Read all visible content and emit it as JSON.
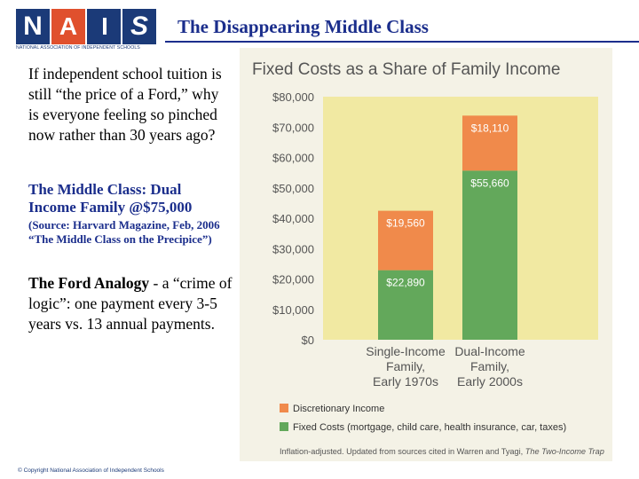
{
  "logo": {
    "letters": [
      "N",
      "A",
      "I",
      "S"
    ],
    "caption": "NATIONAL ASSOCIATION OF INDEPENDENT SCHOOLS",
    "colors": [
      "#1b3a78",
      "#e0502d",
      "#1b3a78",
      "#1b3a78"
    ]
  },
  "slide": {
    "title": "The Disappearing Middle Class",
    "intro": "If independent school tuition is still “the price of a Ford,” why is everyone feeling so pinched now rather than 30 years ago?",
    "middle_class_heading": "The Middle Class: Dual Income Family @$75,000",
    "source_note": "(Source: Harvard Magazine, Feb, 2006 “The Middle Class on the Precipice”)",
    "ford_bold": "The Ford Analogy",
    "ford_rest": " - a “crime of logic”: one payment every 3-5 years vs. 13 annual payments.",
    "copyright": "© Copyright National Association of Independent Schools"
  },
  "colors": {
    "title_blue": "#1b2e8c",
    "panel_bg": "#f4f2e6",
    "plot_bg": "#f1e9a2",
    "fixed_green": "#63a85b",
    "discretionary_orange": "#f08a4b",
    "chart_text": "#555555"
  },
  "chart_data": {
    "type": "bar",
    "stacked": true,
    "title": "Fixed Costs as a Share of Family Income",
    "categories": [
      [
        "Single-Income",
        "Family,",
        "Early 1970s"
      ],
      [
        "Dual-Income",
        "Family,",
        "Early 2000s"
      ]
    ],
    "series": [
      {
        "name": "Fixed Costs (mortgage, child care, health insurance, car, taxes)",
        "values": [
          22890,
          55660
        ],
        "labels": [
          "$22,890",
          "$55,660"
        ],
        "color": "#63a85b"
      },
      {
        "name": "Discretionary Income",
        "values": [
          19560,
          18110
        ],
        "labels": [
          "$19,560",
          "$18,110"
        ],
        "color": "#f08a4b"
      }
    ],
    "ylim": [
      0,
      80000
    ],
    "yticks": [
      "$0",
      "$10,000",
      "$20,000",
      "$30,000",
      "$40,000",
      "$50,000",
      "$60,000",
      "$70,000",
      "$80,000"
    ],
    "ytick_values": [
      0,
      10000,
      20000,
      30000,
      40000,
      50000,
      60000,
      70000,
      80000
    ],
    "legend": [
      {
        "label": "Discretionary Income",
        "color": "#f08a4b"
      },
      {
        "label": "Fixed Costs (mortgage, child care, health insurance, car, taxes)",
        "color": "#63a85b"
      }
    ],
    "legend_position": "bottom",
    "footnote_plain": "Inflation-adjusted. Updated from sources cited in Warren and Tyagi, ",
    "footnote_italic": "The Two-Income Trap",
    "grid": false
  }
}
